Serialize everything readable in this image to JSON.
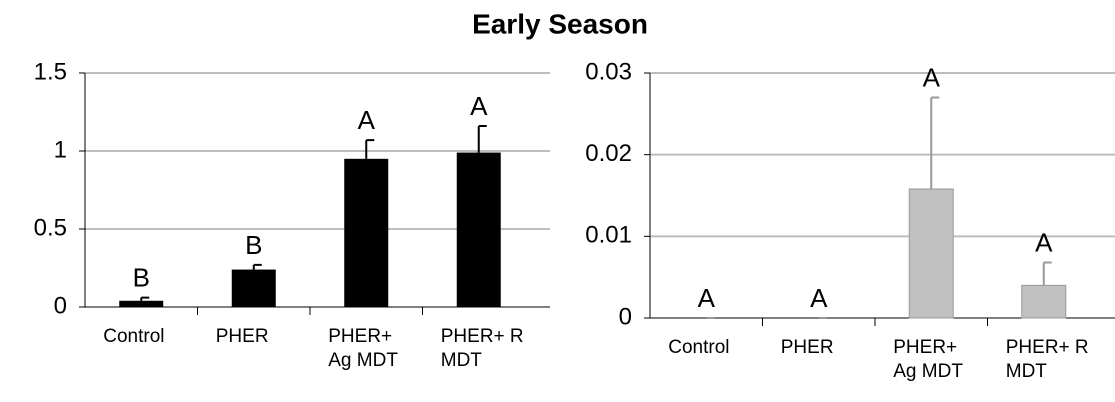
{
  "title": "Early Season",
  "chart_data": [
    {
      "type": "bar",
      "categories": [
        "Control",
        "PHER",
        "PHER+ Ag MDT",
        "PHER+ R MDT"
      ],
      "values": [
        0.04,
        0.24,
        0.95,
        0.99
      ],
      "errors": [
        0.02,
        0.03,
        0.12,
        0.17
      ],
      "letters": [
        "B",
        "B",
        "A",
        "A"
      ],
      "color": "#000000",
      "ylim": [
        0,
        1.5
      ],
      "yticks": [
        0,
        0.5,
        1,
        1.5
      ],
      "grid": true
    },
    {
      "type": "bar",
      "categories": [
        "Control",
        "PHER",
        "PHER+ Ag MDT",
        "PHER+ R MDT"
      ],
      "values": [
        0,
        0,
        0.0158,
        0.004
      ],
      "errors": [
        0,
        0,
        0.0112,
        0.0028
      ],
      "letters": [
        "A",
        "A",
        "A",
        "A"
      ],
      "color": "#c0c0c0",
      "ylim": [
        0,
        0.03
      ],
      "yticks": [
        0,
        0.01,
        0.02,
        0.03
      ],
      "grid": true
    }
  ]
}
